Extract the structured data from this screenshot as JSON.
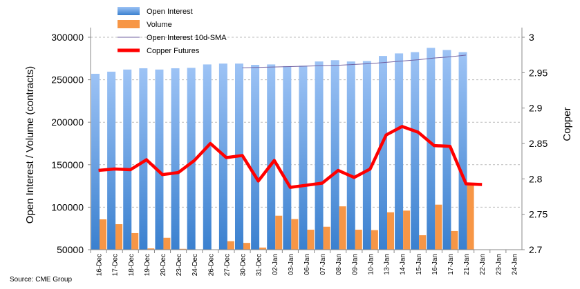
{
  "chart_data": {
    "type": "bar",
    "source": "Source: CME Group",
    "categories": [
      "16-Dec",
      "17-Dec",
      "18-Dec",
      "19-Dec",
      "20-Dec",
      "23-Dec",
      "24-Dec",
      "26-Dec",
      "27-Dec",
      "30-Dec",
      "31-Dec",
      "02-Jan",
      "03-Jan",
      "06-Jan",
      "07-Jan",
      "08-Jan",
      "09-Jan",
      "10-Jan",
      "13-Jan",
      "14-Jan",
      "15-Jan",
      "16-Jan",
      "17-Jan",
      "21-Jan",
      "22-Jan",
      "23-Jan",
      "24-Jan"
    ],
    "ylabel": "Open Interest / Volume (contracts)",
    "y2label": "Copper",
    "ylim": [
      50000,
      300000
    ],
    "y2lim": [
      2.7,
      3
    ],
    "yticks": [
      "50000",
      "100000",
      "150000",
      "200000",
      "250000",
      "300000"
    ],
    "y2ticks": [
      "2.7",
      "2.75",
      "2.8",
      "2.85",
      "2.9",
      "2.95",
      "3"
    ],
    "legend_position": "top-left",
    "series": [
      {
        "name": "Open Interest",
        "type": "bar",
        "color": "#5b9bd5",
        "values": [
          257000,
          259500,
          262000,
          263500,
          262000,
          263500,
          264000,
          268000,
          269000,
          269000,
          267500,
          268000,
          266000,
          266500,
          271500,
          273000,
          271500,
          272000,
          278000,
          281000,
          282500,
          287500,
          285000,
          282500,
          null,
          null,
          null
        ]
      },
      {
        "name": "Volume",
        "type": "bar",
        "color": "#f79646",
        "values": [
          85700,
          80000,
          69500,
          51500,
          64000,
          51000,
          48000,
          47000,
          60000,
          58000,
          52500,
          90000,
          86000,
          73500,
          77000,
          101000,
          73500,
          73000,
          94000,
          96000,
          67000,
          103000,
          72000,
          127000,
          null,
          null,
          null
        ]
      },
      {
        "name": "Open Interest 10d-SMA",
        "type": "line",
        "color": "#7060a0",
        "values": [
          null,
          null,
          null,
          null,
          null,
          null,
          null,
          null,
          null,
          264000,
          264500,
          265000,
          265500,
          266000,
          266500,
          267000,
          268000,
          269000,
          270500,
          272000,
          273500,
          275500,
          277000,
          279000,
          null,
          null,
          null
        ]
      },
      {
        "name": "Copper Futures",
        "type": "line",
        "axis": "right",
        "color": "#ff0000",
        "values": [
          2.812,
          2.814,
          2.813,
          2.827,
          2.806,
          2.809,
          2.826,
          2.85,
          2.83,
          2.833,
          2.797,
          2.826,
          2.788,
          2.791,
          2.794,
          2.812,
          2.802,
          2.814,
          2.862,
          2.874,
          2.866,
          2.847,
          2.846,
          2.793,
          2.792,
          null,
          null
        ]
      }
    ]
  }
}
